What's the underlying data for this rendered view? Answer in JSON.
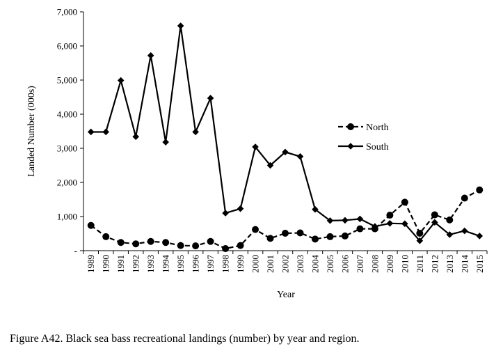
{
  "chart_data": {
    "type": "line",
    "title": "",
    "xlabel": "Year",
    "ylabel": "Landed Number (000s)",
    "x": [
      "1989",
      "1990",
      "1991",
      "1992",
      "1993",
      "1994",
      "1995",
      "1996",
      "1997",
      "1998",
      "1999",
      "2000",
      "2001",
      "2002",
      "2003",
      "2004",
      "2005",
      "2006",
      "2007",
      "2008",
      "2009",
      "2010",
      "2011",
      "2012",
      "2013",
      "2014",
      "2015"
    ],
    "ylim": [
      0,
      7000
    ],
    "yticks": [
      {
        "value": 0,
        "label": "-"
      },
      {
        "value": 1000,
        "label": "1,000"
      },
      {
        "value": 2000,
        "label": "2,000"
      },
      {
        "value": 3000,
        "label": "3,000"
      },
      {
        "value": 4000,
        "label": "4,000"
      },
      {
        "value": 5000,
        "label": "5,000"
      },
      {
        "value": 6000,
        "label": "6,000"
      },
      {
        "value": 7000,
        "label": "7,000"
      }
    ],
    "grid": false,
    "legend_position": "right-center",
    "series": [
      {
        "name": "North",
        "style": "dashed",
        "marker": "circle",
        "color": "#000000",
        "values": [
          740,
          410,
          240,
          200,
          270,
          240,
          150,
          140,
          270,
          60,
          150,
          620,
          360,
          510,
          520,
          340,
          410,
          430,
          640,
          640,
          1040,
          1420,
          510,
          1050,
          900,
          1540,
          1780
        ]
      },
      {
        "name": "South",
        "style": "solid",
        "marker": "diamond",
        "color": "#000000",
        "values": [
          3480,
          3480,
          4990,
          3340,
          5720,
          3180,
          6590,
          3480,
          4470,
          1100,
          1230,
          3040,
          2500,
          2890,
          2760,
          1210,
          880,
          890,
          930,
          710,
          800,
          790,
          290,
          830,
          470,
          580,
          430
        ]
      }
    ]
  },
  "caption": "Figure A42. Black sea bass recreational landings (number) by year and region."
}
